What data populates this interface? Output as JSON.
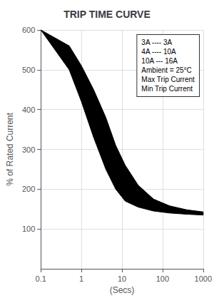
{
  "chart_data": {
    "type": "area",
    "title": "TRIP TIME CURVE",
    "x_label": "(Secs)",
    "y_label": "% of Rated Current",
    "x": [
      0.1,
      0.5,
      1,
      2,
      4,
      7,
      12,
      25,
      60,
      150,
      400,
      1000
    ],
    "series": [
      {
        "name": "Max Trip Current",
        "values": [
          600,
          560,
          510,
          450,
          380,
          310,
          260,
          210,
          175,
          158,
          148,
          143
        ]
      },
      {
        "name": "Min Trip Current",
        "values": [
          600,
          500,
          420,
          330,
          250,
          200,
          170,
          155,
          145,
          140,
          137,
          135
        ]
      }
    ],
    "color": "#000000",
    "log": "x",
    "xlim": [
      0.1,
      1000
    ],
    "xticks": [
      0.1,
      1,
      10,
      100,
      1000
    ],
    "ylim": [
      0,
      600
    ],
    "yticks": [
      100,
      200,
      300,
      400,
      500,
      600
    ],
    "grid": true,
    "legend": "upper right",
    "annotations": [
      "3A ---- 3A",
      "4A ---- 10A",
      "10A --- 16A",
      "Ambient = 25°C"
    ]
  }
}
